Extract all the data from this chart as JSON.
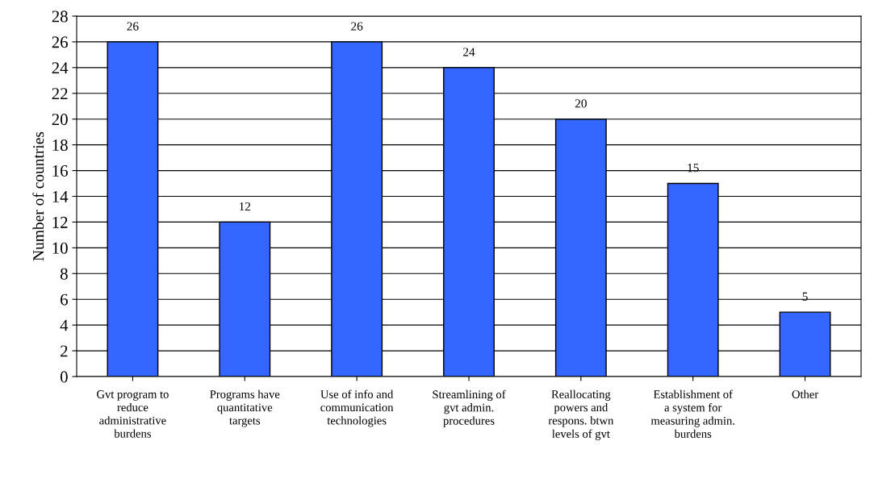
{
  "chart_data": {
    "type": "bar",
    "ylabel": "Number of countries",
    "categories": [
      "Gvt program to\nreduce\nadministrative\nburdens",
      "Programs have\nquantitative\ntargets",
      "Use of info and\ncommunication\ntechnologies",
      "Streamlining of\ngvt admin.\nprocedures",
      "Reallocating\npowers and\nrespons. btwn\nlevels of gvt",
      "Establishment of\na system for\nmeasuring admin.\nburdens",
      "Other"
    ],
    "values": [
      26,
      12,
      26,
      24,
      20,
      15,
      5
    ],
    "color": "#3366ff",
    "ylim": [
      0,
      28
    ],
    "yticks": [
      0,
      2,
      4,
      6,
      8,
      10,
      12,
      14,
      16,
      18,
      20,
      22,
      24,
      26,
      28
    ],
    "grid": "y",
    "data_labels": true
  }
}
